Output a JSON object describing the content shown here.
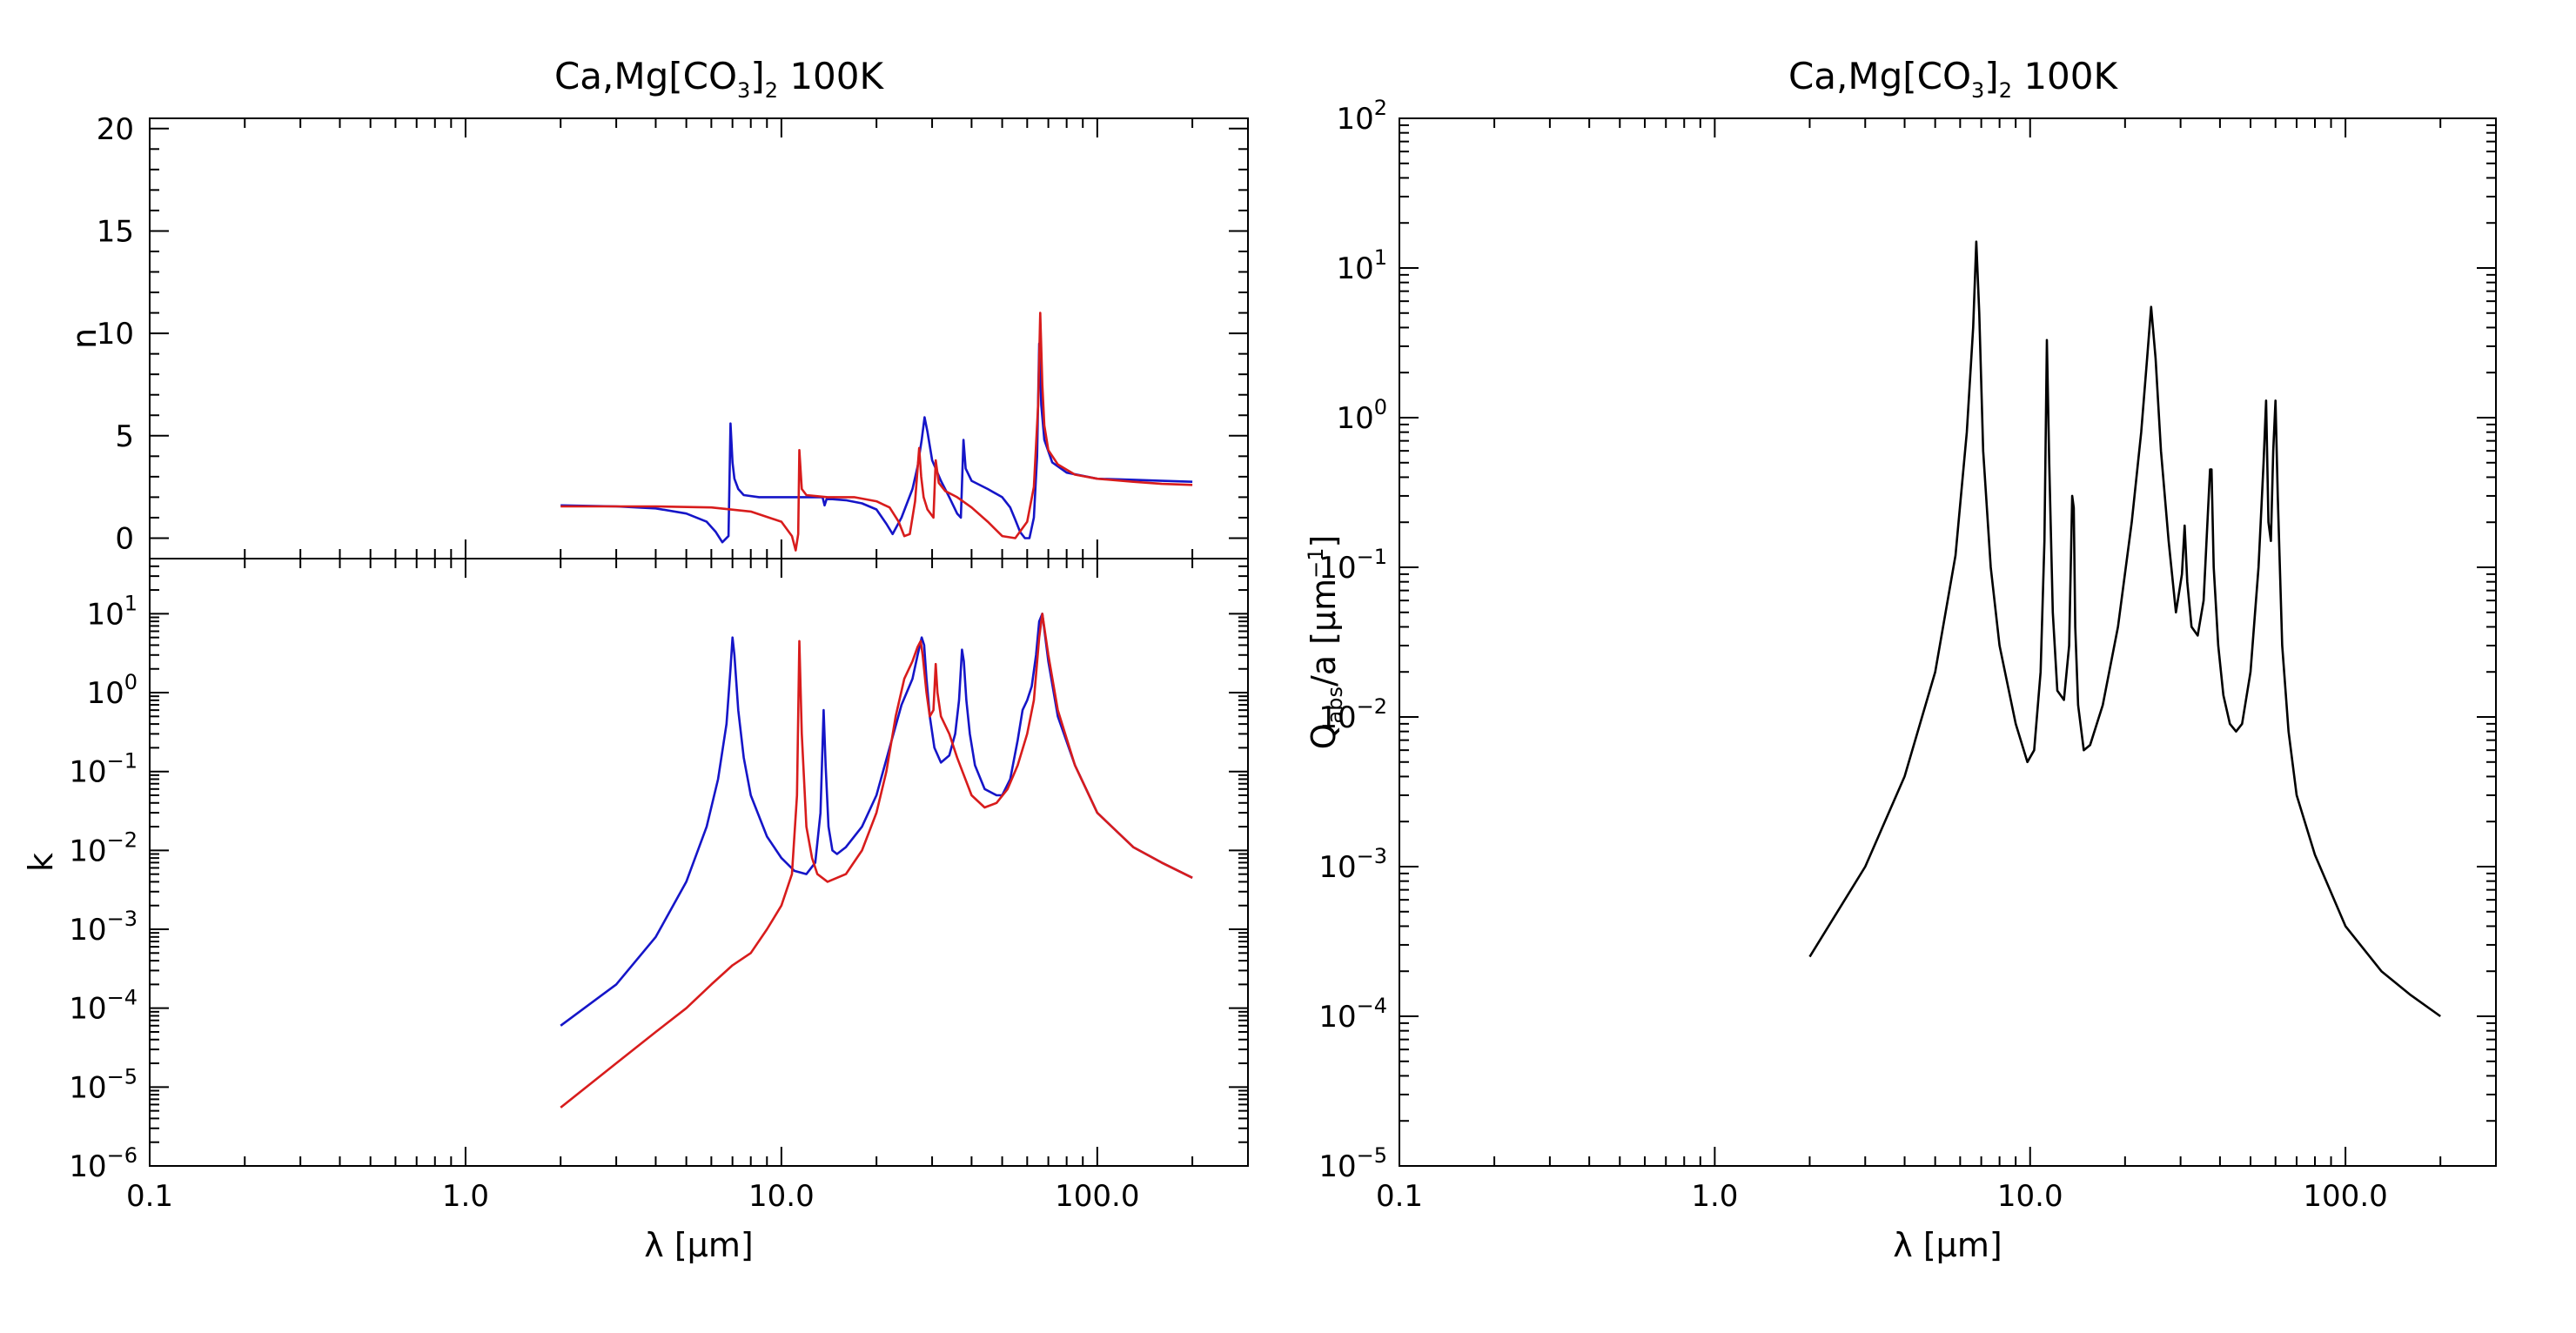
{
  "chart_data": [
    {
      "id": "n",
      "type": "line",
      "title": "Ca,Mg[CO₃]₂ 100K",
      "ylabel": "n",
      "xlabel": "",
      "xscale": "log",
      "yscale": "linear",
      "xlim": [
        0.1,
        300
      ],
      "ylim": [
        -1,
        20.5
      ],
      "x_ticks": [
        0.1,
        1.0,
        10.0,
        100.0
      ],
      "x_tick_labels": [
        "",
        "",
        "",
        ""
      ],
      "y_ticks": [
        0,
        5,
        10,
        15,
        20
      ],
      "y_tick_labels": [
        "0",
        "5",
        "10",
        "15",
        "20"
      ],
      "grid": false,
      "series": [
        {
          "color": "#1515c8",
          "x": [
            2,
            3,
            4,
            5,
            5.8,
            6.2,
            6.5,
            6.8,
            6.9,
            7.0,
            7.1,
            7.3,
            7.6,
            8.5,
            10,
            11.2,
            12,
            13,
            13.5,
            13.7,
            13.9,
            14.5,
            16,
            18,
            20,
            21.5,
            22.5,
            24,
            26,
            27,
            27.8,
            28.4,
            29,
            30,
            32,
            34,
            36,
            37,
            37.7,
            38.3,
            40,
            45,
            50,
            53,
            55,
            57,
            59,
            61,
            63,
            64.5,
            65.5,
            66.5,
            68,
            72,
            80,
            100,
            130,
            160,
            200
          ],
          "y": [
            1.6,
            1.55,
            1.45,
            1.2,
            0.8,
            0.3,
            -0.2,
            0.1,
            5.6,
            3.7,
            2.9,
            2.4,
            2.1,
            2.0,
            2.0,
            2.0,
            2.0,
            2.0,
            2.0,
            1.6,
            1.9,
            1.9,
            1.85,
            1.7,
            1.4,
            0.7,
            0.2,
            1.0,
            2.4,
            3.5,
            4.8,
            5.9,
            5.2,
            3.8,
            2.8,
            2.0,
            1.2,
            1.0,
            4.8,
            3.4,
            2.8,
            2.4,
            2.0,
            1.5,
            0.9,
            0.3,
            0.0,
            0.0,
            1.0,
            4.0,
            9.5,
            6.5,
            4.8,
            3.7,
            3.2,
            2.9,
            2.85,
            2.8,
            2.75
          ]
        },
        {
          "color": "#d81c1c",
          "x": [
            2,
            4,
            6,
            8,
            10,
            10.8,
            11.1,
            11.3,
            11.4,
            11.6,
            12,
            14,
            17,
            20,
            22,
            23.5,
            24.5,
            25.5,
            26.5,
            27.3,
            27.7,
            28.2,
            29,
            30.3,
            30.8,
            31.5,
            33,
            36,
            40,
            45,
            50,
            55,
            60,
            63,
            65,
            66,
            67,
            68,
            70,
            75,
            85,
            100,
            130,
            160,
            200
          ],
          "y": [
            1.55,
            1.55,
            1.5,
            1.3,
            0.8,
            0.1,
            -0.6,
            0.2,
            4.3,
            2.4,
            2.1,
            2.0,
            2.0,
            1.8,
            1.5,
            0.8,
            0.1,
            0.2,
            1.8,
            4.4,
            3.0,
            2.0,
            1.4,
            1.0,
            3.8,
            2.7,
            2.3,
            2.0,
            1.5,
            0.8,
            0.1,
            0.0,
            0.8,
            2.5,
            6.5,
            11.0,
            7.5,
            5.5,
            4.3,
            3.6,
            3.1,
            2.9,
            2.75,
            2.65,
            2.6
          ]
        }
      ]
    },
    {
      "id": "k",
      "type": "line",
      "title": "",
      "ylabel": "k",
      "xlabel": "λ [μm]",
      "xscale": "log",
      "yscale": "log",
      "xlim": [
        0.1,
        300
      ],
      "ylim": [
        1e-06,
        50
      ],
      "x_ticks": [
        0.1,
        1.0,
        10.0,
        100.0
      ],
      "x_tick_labels": [
        "0.1",
        "1.0",
        "10.0",
        "100.0"
      ],
      "y_ticks": [
        1e-06,
        1e-05,
        0.0001,
        0.001,
        0.01,
        0.1,
        1,
        10
      ],
      "y_tick_labels": [
        {
          "base": "10",
          "exp": "−6"
        },
        {
          "base": "10",
          "exp": "−5"
        },
        {
          "base": "10",
          "exp": "−4"
        },
        {
          "base": "10",
          "exp": "−3"
        },
        {
          "base": "10",
          "exp": "−2"
        },
        {
          "base": "10",
          "exp": "−1"
        },
        {
          "base": "10",
          "exp": "0"
        },
        {
          "base": "10",
          "exp": "1"
        }
      ],
      "grid": false,
      "series": [
        {
          "color": "#1515c8",
          "x": [
            2,
            3,
            4,
            5,
            5.8,
            6.3,
            6.7,
            6.9,
            7.0,
            7.1,
            7.3,
            7.6,
            8,
            9,
            10,
            11,
            12,
            12.8,
            13.3,
            13.6,
            13.8,
            14.1,
            14.5,
            15,
            16,
            18,
            20,
            22,
            24,
            26,
            27,
            27.8,
            28.3,
            28.8,
            29.5,
            30.5,
            32,
            34,
            35.5,
            36.5,
            37.3,
            37.8,
            38.5,
            39.5,
            41,
            44,
            48,
            50,
            53,
            56,
            58,
            60,
            62,
            64,
            65.5,
            67,
            70,
            75,
            85,
            100,
            130,
            160,
            200
          ],
          "y": [
            6e-05,
            0.0002,
            0.0008,
            0.004,
            0.02,
            0.08,
            0.4,
            2.0,
            5.0,
            3.0,
            0.6,
            0.15,
            0.05,
            0.015,
            0.008,
            0.0055,
            0.005,
            0.007,
            0.03,
            0.6,
            0.12,
            0.02,
            0.01,
            0.009,
            0.011,
            0.02,
            0.05,
            0.2,
            0.7,
            1.5,
            3.0,
            5.0,
            4.0,
            1.5,
            0.5,
            0.2,
            0.13,
            0.16,
            0.3,
            0.8,
            3.5,
            2.5,
            0.8,
            0.3,
            0.12,
            0.06,
            0.05,
            0.05,
            0.08,
            0.25,
            0.6,
            0.8,
            1.2,
            3.0,
            8.0,
            10.0,
            2.5,
            0.5,
            0.12,
            0.03,
            0.011,
            0.007,
            0.0045
          ]
        },
        {
          "color": "#d81c1c",
          "x": [
            2,
            3,
            4,
            5,
            6,
            7,
            8,
            9,
            10,
            10.8,
            11.2,
            11.4,
            11.6,
            12,
            12.5,
            13,
            14,
            16,
            18,
            20,
            21.5,
            23,
            24.5,
            26,
            27,
            27.6,
            28,
            28.8,
            29.5,
            30.3,
            30.8,
            31.2,
            32,
            34,
            36,
            40,
            44,
            48,
            52,
            56,
            60,
            63,
            65.5,
            67,
            70,
            75,
            85,
            100,
            130,
            160,
            200
          ],
          "y": [
            5.5e-06,
            2e-05,
            5e-05,
            0.0001,
            0.0002,
            0.00035,
            0.0005,
            0.001,
            0.002,
            0.005,
            0.05,
            4.5,
            0.3,
            0.02,
            0.008,
            0.005,
            0.004,
            0.005,
            0.01,
            0.03,
            0.1,
            0.5,
            1.5,
            2.5,
            3.8,
            4.5,
            3.0,
            1.0,
            0.5,
            0.6,
            2.3,
            1.0,
            0.5,
            0.3,
            0.15,
            0.05,
            0.035,
            0.04,
            0.06,
            0.12,
            0.3,
            0.8,
            5.0,
            10.0,
            3.0,
            0.6,
            0.12,
            0.03,
            0.011,
            0.007,
            0.0045
          ]
        }
      ]
    },
    {
      "id": "q",
      "type": "line",
      "title": "Ca,Mg[CO₃]₂ 100K",
      "ylabel": "Qabs/a [μm⁻¹]",
      "xlabel": "λ [μm]",
      "xscale": "log",
      "yscale": "log",
      "xlim": [
        0.1,
        300
      ],
      "ylim": [
        1e-05,
        100
      ],
      "x_ticks": [
        0.1,
        1.0,
        10.0,
        100.0
      ],
      "x_tick_labels": [
        "0.1",
        "1.0",
        "10.0",
        "100.0"
      ],
      "y_ticks": [
        1e-05,
        0.0001,
        0.001,
        0.01,
        0.1,
        1,
        10,
        100
      ],
      "y_tick_labels": [
        {
          "base": "10",
          "exp": "−5"
        },
        {
          "base": "10",
          "exp": "−4"
        },
        {
          "base": "10",
          "exp": "−3"
        },
        {
          "base": "10",
          "exp": "−2"
        },
        {
          "base": "10",
          "exp": "−1"
        },
        {
          "base": "10",
          "exp": "0"
        },
        {
          "base": "10",
          "exp": "1"
        },
        {
          "base": "10",
          "exp": "2"
        }
      ],
      "grid": false,
      "series": [
        {
          "color": "#000000",
          "x": [
            2,
            3,
            4,
            5,
            5.8,
            6.3,
            6.6,
            6.75,
            6.9,
            7.1,
            7.5,
            8,
            9,
            9.8,
            10.3,
            10.8,
            11.1,
            11.3,
            11.5,
            11.8,
            12.2,
            12.8,
            13.3,
            13.6,
            13.75,
            13.9,
            14.2,
            14.8,
            15.5,
            17,
            19,
            21,
            22.5,
            23.5,
            24.2,
            25,
            26,
            27.5,
            29,
            30.3,
            30.9,
            31.5,
            32.5,
            34,
            35.5,
            36.5,
            37.2,
            37.6,
            38.2,
            39.5,
            41,
            43,
            45,
            47,
            50,
            53,
            55,
            56,
            57,
            58,
            59,
            60,
            61,
            63,
            66,
            70,
            80,
            100,
            130,
            160,
            200
          ],
          "y": [
            0.00025,
            0.001,
            0.004,
            0.02,
            0.12,
            0.8,
            4.0,
            15.0,
            5.0,
            0.6,
            0.1,
            0.03,
            0.009,
            0.005,
            0.006,
            0.02,
            0.15,
            3.3,
            0.5,
            0.05,
            0.015,
            0.013,
            0.03,
            0.3,
            0.25,
            0.04,
            0.012,
            0.006,
            0.0065,
            0.012,
            0.04,
            0.2,
            0.8,
            2.5,
            5.5,
            2.5,
            0.6,
            0.15,
            0.05,
            0.09,
            0.19,
            0.08,
            0.04,
            0.035,
            0.06,
            0.2,
            0.45,
            0.45,
            0.1,
            0.03,
            0.014,
            0.009,
            0.008,
            0.009,
            0.02,
            0.1,
            0.5,
            1.3,
            0.2,
            0.15,
            0.6,
            1.3,
            0.3,
            0.03,
            0.008,
            0.003,
            0.0012,
            0.0004,
            0.0002,
            0.00014,
            0.0001
          ]
        }
      ]
    }
  ]
}
